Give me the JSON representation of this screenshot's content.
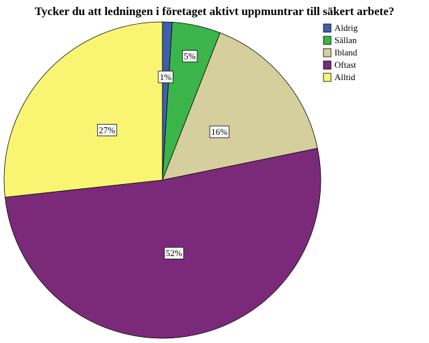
{
  "chart_data": {
    "type": "pie",
    "title": "Tycker du att ledningen i företaget aktivt uppmuntrar till säkert arbete?",
    "categories": [
      "Aldrig",
      "Sällan",
      "Ibland",
      "Oftast",
      "Alltid"
    ],
    "values": [
      1,
      5,
      16,
      52,
      27
    ],
    "value_labels": [
      "1%",
      "5%",
      "16%",
      "52%",
      "27%"
    ],
    "colors": [
      "#3f5fa9",
      "#3bb54a",
      "#d5cf9e",
      "#7b2a7a",
      "#f9f572"
    ],
    "legend": "top-right"
  }
}
